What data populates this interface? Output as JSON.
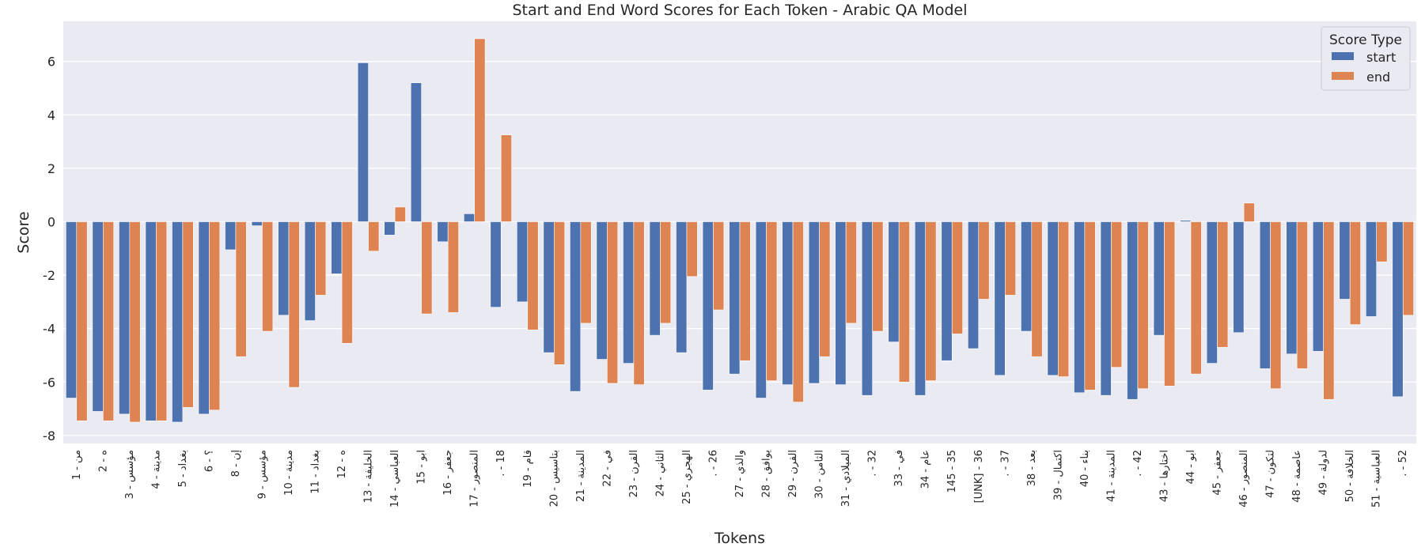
{
  "chart_data": {
    "type": "bar",
    "title": "Start and End Word Scores for Each Token - Arabic QA Model",
    "xlabel": "Tokens",
    "ylabel": "Score",
    "ylim": [
      -8.3,
      7.5
    ],
    "yticks": [
      -8,
      -6,
      -4,
      -2,
      0,
      2,
      4,
      6
    ],
    "grid": true,
    "legend_position": "top-right",
    "legend_title": "Score Type",
    "categories": [
      "من - 1",
      "ه - 2",
      "مؤسس - 3",
      "مدينة - 4",
      "بغداد - 5",
      "؟ - 6",
      "إن - 8",
      "مؤسس - 9",
      "مدينة - 10",
      "بغداد - 11",
      "ه - 12",
      "الخليفة - 13",
      "العباسي - 14",
      "ابو - 15",
      "جعفر - 16",
      "المنصور - 17",
      ". - 18",
      "قام - 19",
      "بتاسيس - 20",
      "المدينة - 21",
      "في - 22",
      "القرن - 23",
      "الثاني - 24",
      "الهجري - 25",
      ". - 26",
      "والذي - 27",
      "يوافق - 28",
      "القرن - 29",
      "الثامن - 30",
      "الميلادي - 31",
      ". - 32",
      "في - 33",
      "عام - 34",
      "145 - 35",
      "[UNK] - 36",
      ". - 37",
      "بعد - 38",
      "اكتمال - 39",
      "بناء - 40",
      "المدينة - 41",
      ". - 42",
      "اختارها - 43",
      "ابو - 44",
      "جعفر - 45",
      "المنصور - 46",
      "لتكون - 47",
      "عاصمة - 48",
      "لدولة - 49",
      "الخلافة - 50",
      "العباسية - 51",
      ". - 52"
    ],
    "series": [
      {
        "name": "start",
        "color": "#4c72b0",
        "values": [
          -6.6,
          -7.1,
          -7.2,
          -7.45,
          -7.5,
          -7.2,
          -1.05,
          -0.15,
          -3.5,
          -3.7,
          -1.95,
          5.95,
          -0.5,
          5.2,
          -0.75,
          0.3,
          -3.2,
          -3.0,
          -4.9,
          -6.35,
          -5.15,
          -5.3,
          -4.25,
          -4.9,
          -6.3,
          -5.7,
          -6.6,
          -6.1,
          -6.05,
          -6.1,
          -6.5,
          -4.5,
          -6.5,
          -5.2,
          -4.75,
          -5.75,
          -4.1,
          -5.75,
          -6.4,
          -6.5,
          -6.65,
          -4.25,
          0.05,
          -5.3,
          -4.15,
          -5.5,
          -4.95,
          -4.85,
          -2.9,
          -3.55,
          -6.55
        ]
      },
      {
        "name": "end",
        "color": "#dd8452",
        "values": [
          -7.45,
          -7.45,
          -7.5,
          -7.45,
          -6.95,
          -7.05,
          -5.05,
          -4.1,
          -6.2,
          -2.75,
          -4.55,
          -1.1,
          0.55,
          -3.45,
          -3.4,
          6.85,
          3.25,
          -4.05,
          -5.35,
          -3.8,
          -6.05,
          -6.1,
          -3.8,
          -2.05,
          -3.3,
          -5.2,
          -5.95,
          -6.75,
          -5.05,
          -3.8,
          -4.1,
          -6.0,
          -5.95,
          -4.2,
          -2.9,
          -2.75,
          -5.05,
          -5.8,
          -6.3,
          -5.45,
          -6.25,
          -6.15,
          -5.7,
          -4.7,
          0.7,
          -6.25,
          -5.5,
          -6.65,
          -3.85,
          -1.5,
          -3.5
        ]
      }
    ]
  }
}
